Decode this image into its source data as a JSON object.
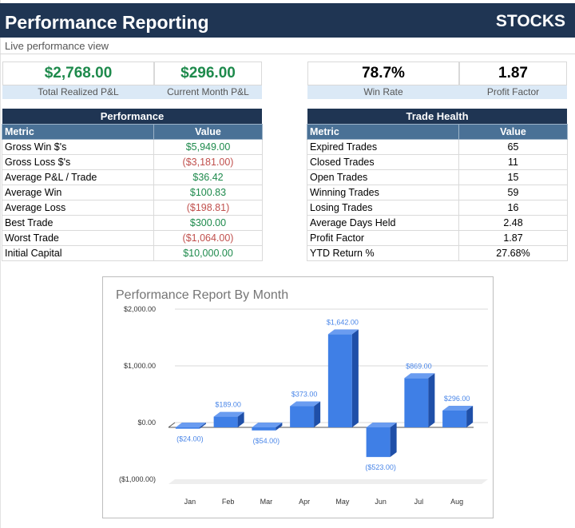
{
  "header": {
    "title": "Performance Reporting",
    "right_label": "STOCKS",
    "subtitle": "Live performance view"
  },
  "kpis": {
    "realized_pnl": {
      "value": "$2,768.00",
      "label": "Total Realized P&L"
    },
    "month_pnl": {
      "value": "$296.00",
      "label": "Current Month P&L"
    },
    "win_rate": {
      "value": "78.7%",
      "label": "Win Rate"
    },
    "profit_factor": {
      "value": "1.87",
      "label": "Profit Factor"
    }
  },
  "performance": {
    "title": "Performance",
    "col_metric": "Metric",
    "col_value": "Value",
    "rows": [
      {
        "metric": "Gross Win $'s",
        "value": "$5,949.00",
        "tone": "pos"
      },
      {
        "metric": "Gross Loss $'s",
        "value": "($3,181.00)",
        "tone": "neg"
      },
      {
        "metric": "Average P&L / Trade",
        "value": "$36.42",
        "tone": "pos"
      },
      {
        "metric": "Average Win",
        "value": "$100.83",
        "tone": "pos"
      },
      {
        "metric": "Average Loss",
        "value": "($198.81)",
        "tone": "neg"
      },
      {
        "metric": "Best Trade",
        "value": "$300.00",
        "tone": "pos"
      },
      {
        "metric": "Worst Trade",
        "value": "($1,064.00)",
        "tone": "neg"
      },
      {
        "metric": "Initial Capital",
        "value": "$10,000.00",
        "tone": "pos"
      }
    ]
  },
  "trade_health": {
    "title": "Trade Health",
    "col_metric": "Metric",
    "col_value": "Value",
    "rows": [
      {
        "metric": "Expired Trades",
        "value": "65"
      },
      {
        "metric": "Closed Trades",
        "value": "11"
      },
      {
        "metric": "Open Trades",
        "value": "15"
      },
      {
        "metric": "Winning Trades",
        "value": "59"
      },
      {
        "metric": "Losing Trades",
        "value": "16"
      },
      {
        "metric": "Average Days Held",
        "value": "2.48"
      },
      {
        "metric": "Profit Factor",
        "value": "1.87"
      },
      {
        "metric": "YTD Return %",
        "value": "27.68%"
      }
    ]
  },
  "colors": {
    "navy": "#1f3553",
    "header_blue": "#4a7196",
    "positive": "#1e8a4c",
    "negative": "#c0504d",
    "bar": "#3f7fe6"
  },
  "chart_data": {
    "type": "bar",
    "title": "Performance Report By Month",
    "categories": [
      "Jan",
      "Feb",
      "Mar",
      "Apr",
      "May",
      "Jun",
      "Jul",
      "Aug"
    ],
    "values": [
      -24,
      189,
      -54,
      373,
      1642,
      -523,
      869,
      296
    ],
    "value_labels": [
      "($24.00)",
      "$189.00",
      "($54.00)",
      "$373.00",
      "$1,642.00",
      "($523.00)",
      "$869.00",
      "$296.00"
    ],
    "y_ticks": [
      2000,
      1000,
      0,
      -1000
    ],
    "y_tick_labels": [
      "$2,000.00",
      "$1,000.00",
      "$0.00",
      "($1,000.00)"
    ],
    "ylim": [
      -1000,
      2000
    ],
    "grid": true,
    "style": "3d"
  }
}
